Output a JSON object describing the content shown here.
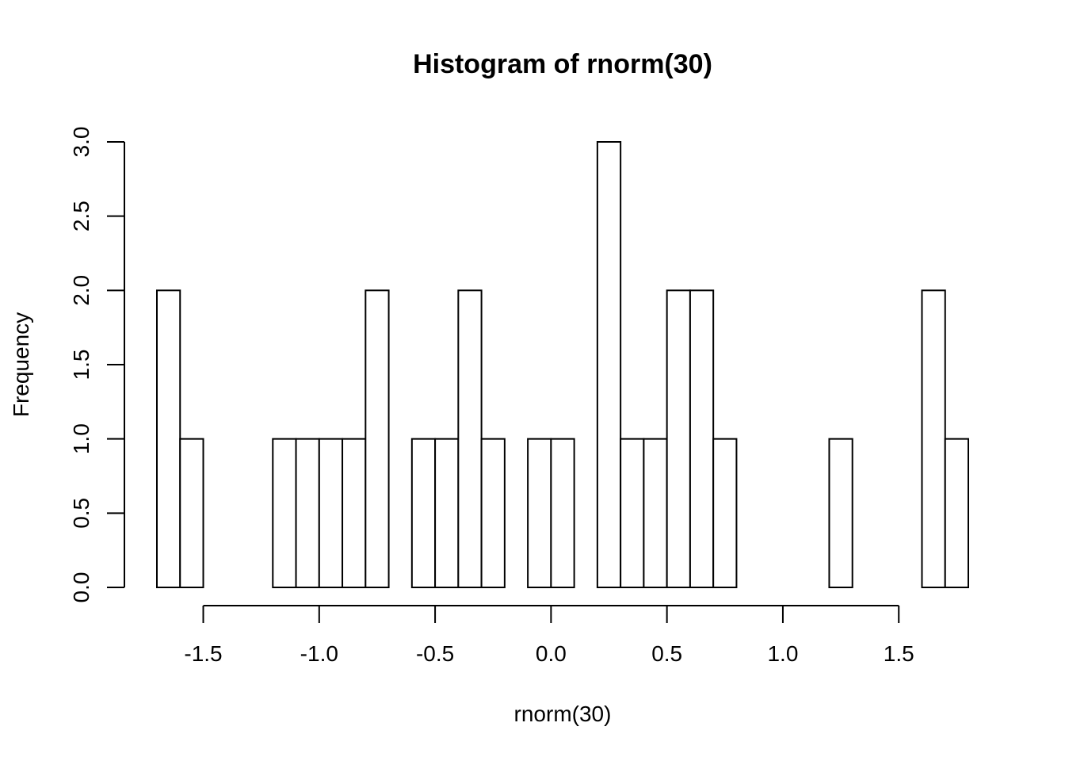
{
  "chart_data": {
    "type": "bar",
    "title": "Histogram of rnorm(30)",
    "xlabel": "rnorm(30)",
    "ylabel": "Frequency",
    "xlim": [
      -1.7,
      1.8
    ],
    "ylim": [
      0,
      3
    ],
    "bins": {
      "start": -1.7,
      "width": 0.1,
      "counts": [
        2,
        1,
        0,
        0,
        0,
        1,
        1,
        1,
        1,
        2,
        0,
        1,
        1,
        2,
        1,
        0,
        1,
        1,
        0,
        3,
        1,
        1,
        2,
        2,
        1,
        0,
        0,
        0,
        0,
        1,
        0,
        0,
        0,
        2,
        1
      ]
    },
    "x_ticks": [
      -1.5,
      -1.0,
      -0.5,
      0.0,
      0.5,
      1.0,
      1.5
    ],
    "x_tick_labels": [
      "-1.5",
      "-1.0",
      "-0.5",
      "0.0",
      "0.5",
      "1.0",
      "1.5"
    ],
    "y_ticks": [
      0,
      0.5,
      1,
      1.5,
      2,
      2.5,
      3
    ],
    "y_tick_labels": [
      "0.0",
      "0.5",
      "1.0",
      "1.5",
      "2.0",
      "2.5",
      "3.0"
    ],
    "grid": false
  }
}
